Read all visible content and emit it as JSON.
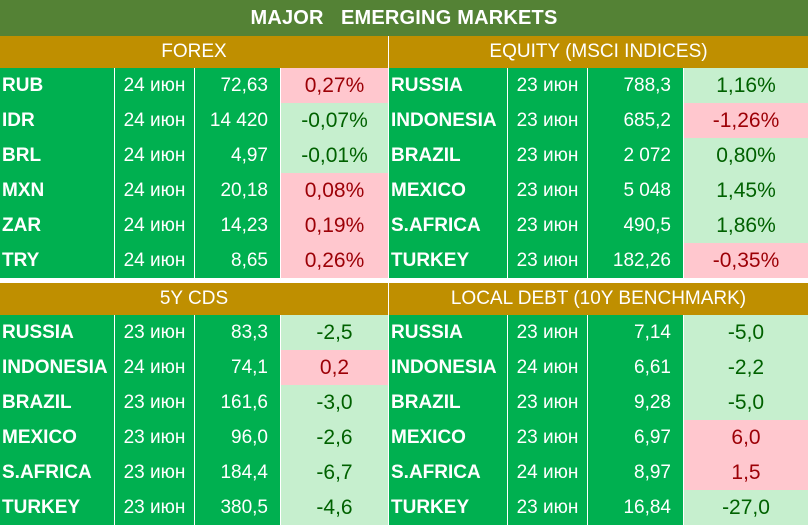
{
  "title": "MAJOR   EMERGING MARKETS",
  "sections": {
    "forex": {
      "header": "FOREX",
      "rows": [
        {
          "name": "RUB",
          "date": "24 июн",
          "value": "72,63",
          "change": "0,27%",
          "sign": "neg"
        },
        {
          "name": "IDR",
          "date": "24 июн",
          "value": "14 420",
          "change": "-0,07%",
          "sign": "pos"
        },
        {
          "name": "BRL",
          "date": "24 июн",
          "value": "4,97",
          "change": "-0,01%",
          "sign": "pos"
        },
        {
          "name": "MXN",
          "date": "24 июн",
          "value": "20,18",
          "change": "0,08%",
          "sign": "neg"
        },
        {
          "name": "ZAR",
          "date": "24 июн",
          "value": "14,23",
          "change": "0,19%",
          "sign": "neg"
        },
        {
          "name": "TRY",
          "date": "24 июн",
          "value": "8,65",
          "change": "0,26%",
          "sign": "neg"
        }
      ]
    },
    "equity": {
      "header": "EQUITY (MSCI INDICES)",
      "rows": [
        {
          "name": "RUSSIA",
          "date": "23 июн",
          "value": "788,3",
          "change": "1,16%",
          "sign": "pos"
        },
        {
          "name": "INDONESIA",
          "date": "23 июн",
          "value": "685,2",
          "change": "-1,26%",
          "sign": "neg"
        },
        {
          "name": "BRAZIL",
          "date": "23 июн",
          "value": "2 072",
          "change": "0,80%",
          "sign": "pos"
        },
        {
          "name": "MEXICO",
          "date": "23 июн",
          "value": "5 048",
          "change": "1,45%",
          "sign": "pos"
        },
        {
          "name": "S.AFRICA",
          "date": "23 июн",
          "value": "490,5",
          "change": "1,86%",
          "sign": "pos"
        },
        {
          "name": "TURKEY",
          "date": "23 июн",
          "value": "182,26",
          "change": "-0,35%",
          "sign": "neg"
        }
      ]
    },
    "cds": {
      "header": "5Y CDS",
      "rows": [
        {
          "name": "RUSSIA",
          "date": "23 июн",
          "value": "83,3",
          "change": "-2,5",
          "sign": "pos"
        },
        {
          "name": "INDONESIA",
          "date": "24 июн",
          "value": "74,1",
          "change": "0,2",
          "sign": "neg"
        },
        {
          "name": "BRAZIL",
          "date": "23 июн",
          "value": "161,6",
          "change": "-3,0",
          "sign": "pos"
        },
        {
          "name": "MEXICO",
          "date": "23 июн",
          "value": "96,0",
          "change": "-2,6",
          "sign": "pos"
        },
        {
          "name": "S.AFRICA",
          "date": "23 июн",
          "value": "184,4",
          "change": "-6,7",
          "sign": "pos"
        },
        {
          "name": "TURKEY",
          "date": "23 июн",
          "value": "380,5",
          "change": "-4,6",
          "sign": "pos"
        }
      ]
    },
    "debt": {
      "header": "LOCAL DEBT (10Y BENCHMARK)",
      "rows": [
        {
          "name": "RUSSIA",
          "date": "23 июн",
          "value": "7,14",
          "change": "-5,0",
          "sign": "pos"
        },
        {
          "name": "INDONESIA",
          "date": "24 июн",
          "value": "6,61",
          "change": "-2,2",
          "sign": "pos"
        },
        {
          "name": "BRAZIL",
          "date": "23 июн",
          "value": "9,28",
          "change": "-5,0",
          "sign": "pos"
        },
        {
          "name": "MEXICO",
          "date": "23 июн",
          "value": "6,97",
          "change": "6,0",
          "sign": "neg"
        },
        {
          "name": "S.AFRICA",
          "date": "24 июн",
          "value": "8,97",
          "change": "1,5",
          "sign": "neg"
        },
        {
          "name": "TURKEY",
          "date": "23 июн",
          "value": "16,84",
          "change": "-27,0",
          "sign": "pos"
        }
      ]
    }
  },
  "colors": {
    "title_bg": "#548235",
    "header_bg": "#bf8f00",
    "cell_bg": "#00b050",
    "positive_bg": "#c6efce",
    "positive_fg": "#006100",
    "negative_bg": "#ffc7ce",
    "negative_fg": "#9c0006"
  }
}
